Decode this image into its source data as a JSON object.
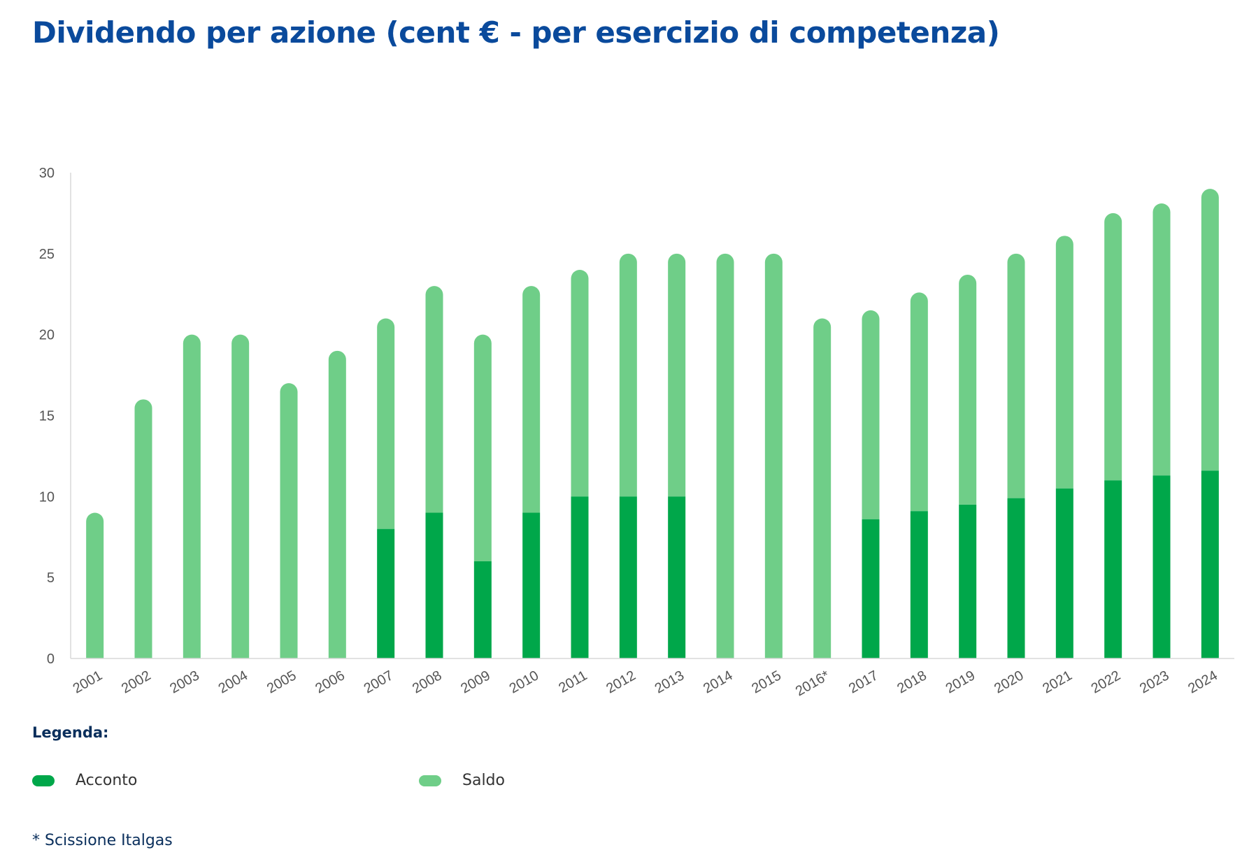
{
  "title": "Dividendo per azione (cent € - per esercizio di competenza)",
  "colors": {
    "acconto": "#00a74a",
    "saldo": "#6fce88",
    "title": "#0a4a9c",
    "axis": "#d9d9d9"
  },
  "legend": {
    "title": "Legenda:",
    "items": [
      {
        "label": "Acconto",
        "color": "#00a74a"
      },
      {
        "label": "Saldo",
        "color": "#6fce88"
      }
    ]
  },
  "footnote": "* Scissione Italgas",
  "chart_data": {
    "type": "bar",
    "stacked": true,
    "title": "Dividendo per azione (cent € - per esercizio di competenza)",
    "categories": [
      "2001",
      "2002",
      "2003",
      "2004",
      "2005",
      "2006",
      "2007",
      "2008",
      "2009",
      "2010",
      "2011",
      "2012",
      "2013",
      "2014",
      "2015",
      "2016*",
      "2017",
      "2018",
      "2019",
      "2020",
      "2021",
      "2022",
      "2023",
      "2024"
    ],
    "series": [
      {
        "name": "Acconto",
        "color": "#00a74a",
        "values": [
          0,
          0,
          0,
          0,
          0,
          0,
          8,
          9,
          6,
          9,
          10,
          10,
          10,
          0,
          0,
          0,
          8.6,
          9.1,
          9.5,
          9.9,
          10.5,
          11,
          11.3,
          11.6
        ]
      },
      {
        "name": "Saldo",
        "color": "#6fce88",
        "values": [
          9,
          16,
          20,
          20,
          17,
          19,
          13,
          14,
          14,
          14,
          14,
          15,
          15,
          25,
          25,
          21,
          12.9,
          13.5,
          14.2,
          15.1,
          15.6,
          16.5,
          16.8,
          17.4
        ]
      }
    ],
    "ylim": [
      0,
      30
    ],
    "yticks": [
      0,
      5,
      10,
      15,
      20,
      25,
      30
    ],
    "xlabel": "",
    "ylabel": "",
    "grid": false,
    "legend_position": "bottom"
  }
}
